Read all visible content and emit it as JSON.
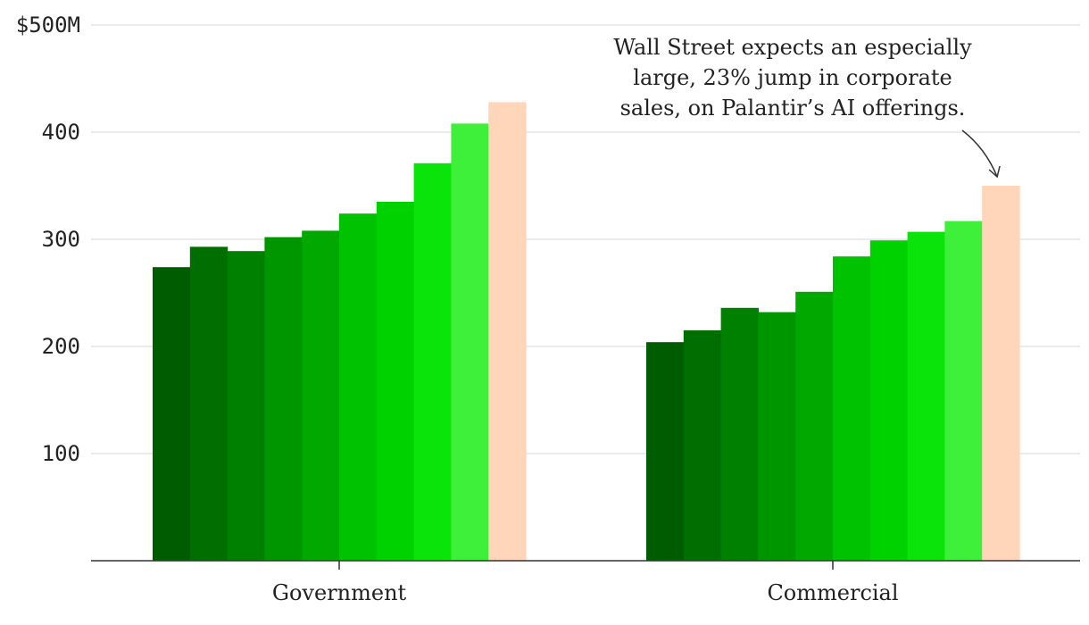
{
  "chart_data": {
    "type": "bar",
    "categories": [
      "Government",
      "Commercial"
    ],
    "bar_values": [
      [
        274,
        293,
        289,
        302,
        308,
        324,
        335,
        371,
        408,
        428
      ],
      [
        204,
        215,
        236,
        232,
        251,
        284,
        299,
        307,
        317,
        350
      ]
    ],
    "bar_colors": [
      "#005c00",
      "#006e00",
      "#008000",
      "#009600",
      "#00a800",
      "#00c200",
      "#00d200",
      "#0ae40a",
      "#3ff03a",
      "#62ff4e",
      "#ffd6ba"
    ],
    "ylim": [
      0,
      500
    ],
    "y_ticks": [
      {
        "value": 100,
        "label": "100"
      },
      {
        "value": 200,
        "label": "200"
      },
      {
        "value": 300,
        "label": "300"
      },
      {
        "value": 400,
        "label": "400"
      },
      {
        "value": 500,
        "label": "$500M"
      }
    ],
    "annotation": {
      "lines": [
        "Wall Street expects an especially",
        "large, 23% jump in corporate",
        "sales, on Palantir’s AI offerings."
      ],
      "target": {
        "category_index": 1,
        "bar_index": 9
      }
    },
    "grid": true,
    "legend": "none"
  }
}
